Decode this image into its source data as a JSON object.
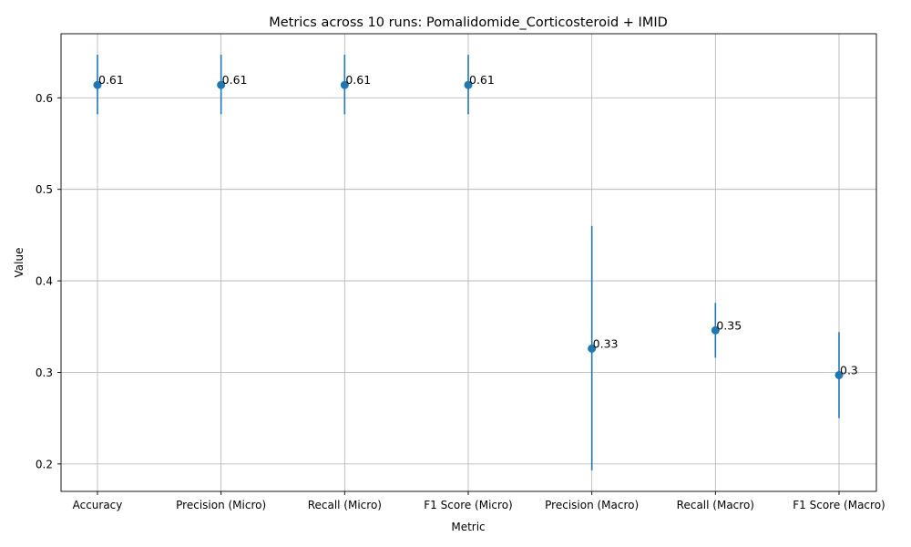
{
  "chart_data": {
    "type": "scatter",
    "title": "Metrics across 10 runs: Pomalidomide_Corticosteroid + IMID",
    "xlabel": "Metric",
    "ylabel": "Value",
    "categories": [
      "Accuracy",
      "Precision (Micro)",
      "Recall (Micro)",
      "F1 Score (Micro)",
      "Precision (Macro)",
      "Recall (Macro)",
      "F1 Score (Macro)"
    ],
    "values": [
      0.614,
      0.614,
      0.614,
      0.614,
      0.326,
      0.346,
      0.297
    ],
    "error_low": [
      0.582,
      0.582,
      0.582,
      0.582,
      0.193,
      0.316,
      0.25
    ],
    "error_high": [
      0.647,
      0.647,
      0.647,
      0.647,
      0.46,
      0.376,
      0.344
    ],
    "point_labels": [
      "0.61",
      "0.61",
      "0.61",
      "0.61",
      "0.33",
      "0.35",
      "0.3"
    ],
    "ylim": [
      0.17,
      0.67
    ],
    "yticks": [
      "0.2",
      "0.3",
      "0.4",
      "0.5",
      "0.6"
    ],
    "grid": true,
    "color": "#1f77b4"
  }
}
